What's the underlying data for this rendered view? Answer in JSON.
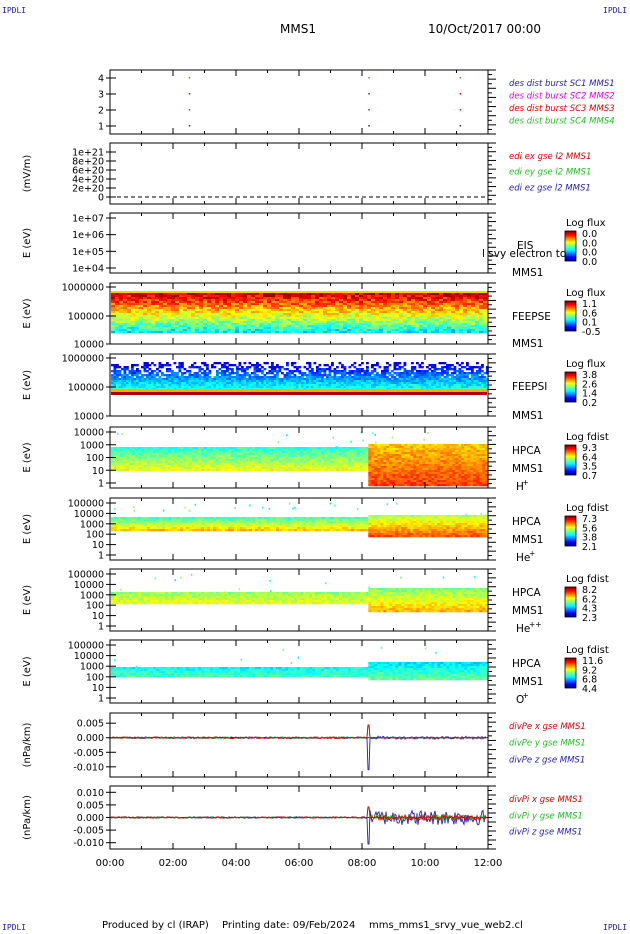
{
  "corner_labels": [
    "IPDLI",
    "IPDLI",
    "IPDLI",
    "IPDLI"
  ],
  "header": {
    "spacecraft": "MMS1",
    "datetime": "10/Oct/2017 00:00"
  },
  "footer": {
    "produced_by": "Produced by cl (IRAP)",
    "printing_date": "Printing date: 09/Feb/2024",
    "filename": "mms_mms1_srvy_vue_web2.cl"
  },
  "colors": {
    "blue": "#1f1fb4",
    "magenta": "#e000e0",
    "red": "#e00000",
    "green": "#20c020",
    "black": "#000000"
  },
  "chart_data": {
    "type": "multi-panel time series",
    "x_axis": {
      "tick_labels": [
        "00:00",
        "02:00",
        "04:00",
        "06:00",
        "08:00",
        "10:00",
        "12:00"
      ],
      "range_hours": [
        0,
        12
      ]
    },
    "panels": [
      {
        "id": "burst",
        "type": "scatter",
        "ylabel": "",
        "tick_labels": [
          "4",
          "3",
          "2",
          "1"
        ],
        "ylim": [
          0.5,
          4.5
        ],
        "series": [
          {
            "name": "des dist burst SC1 MMS1",
            "color": "#1f1fb4",
            "y": 1,
            "times": [
              2.5,
              8.2,
              11.1
            ]
          },
          {
            "name": "des dist burst SC2 MMS2",
            "color": "#e000e0",
            "y": 2,
            "times": [
              2.5,
              8.2,
              11.1
            ]
          },
          {
            "name": "des dist burst SC3 MMS3",
            "color": "#e00000",
            "y": 3,
            "times": [
              2.5,
              8.2,
              11.1
            ]
          },
          {
            "name": "des dist burst SC4 MMS4",
            "color": "#20c020",
            "y": 4,
            "times": [
              2.5,
              8.2,
              11.1
            ]
          }
        ]
      },
      {
        "id": "edi",
        "type": "line",
        "ylabel": "(mV/m)",
        "tick_labels": [
          "1e+21",
          "8e+20",
          "6e+20",
          "4e+20",
          "2e+20",
          "0"
        ],
        "ylim": [
          0,
          1e+21
        ],
        "series": [
          {
            "name": "edi ex gse l2 MMS1",
            "color": "#e00000"
          },
          {
            "name": "edi ey gse l2 MMS1",
            "color": "#20c020"
          },
          {
            "name": "edi ez gse l2 MMS1",
            "color": "#1f1fb4"
          }
        ]
      },
      {
        "id": "eis",
        "type": "heatmap",
        "ylabel": "E (eV)",
        "tick_labels": [
          "1e+07",
          "1e+06",
          "1e+05",
          "1e+04"
        ],
        "instrument": "EIS",
        "spacecraft": "MMS1",
        "note": "l svy electron to",
        "colorbar": {
          "title": "Log flux",
          "ticks": [
            "0.0",
            "0.0",
            "0.0",
            "0.0"
          ]
        }
      },
      {
        "id": "feepse",
        "type": "heatmap",
        "ylabel": "E (eV)",
        "tick_labels": [
          "1000000",
          "100000",
          "10000"
        ],
        "instrument": "FEEPSE",
        "spacecraft": "MMS1",
        "colorbar": {
          "title": "Log flux",
          "ticks": [
            "1.1",
            "0.6",
            "0.1",
            "-0.5"
          ]
        }
      },
      {
        "id": "feepsi",
        "type": "heatmap",
        "ylabel": "E (eV)",
        "tick_labels": [
          "1000000",
          "100000",
          "10000"
        ],
        "instrument": "FEEPSI",
        "spacecraft": "MMS1",
        "colorbar": {
          "title": "Log flux",
          "ticks": [
            "3.8",
            "2.6",
            "1.4",
            "0.2"
          ]
        }
      },
      {
        "id": "hpca_h",
        "type": "heatmap",
        "ylabel": "E (eV)",
        "tick_labels": [
          "10000",
          "1000",
          "100",
          "10",
          "1"
        ],
        "instrument": "HPCA",
        "spacecraft": "MMS1",
        "species": "H",
        "charge": "+",
        "colorbar": {
          "title": "Log fdist",
          "ticks": [
            "9.3",
            "6.4",
            "3.5",
            "0.7"
          ]
        }
      },
      {
        "id": "hpca_he",
        "type": "heatmap",
        "ylabel": "E (eV)",
        "tick_labels": [
          "100000",
          "10000",
          "1000",
          "100",
          "10",
          "1"
        ],
        "instrument": "HPCA",
        "spacecraft": "MMS1",
        "species": "He",
        "charge": "+",
        "colorbar": {
          "title": "Log fdist",
          "ticks": [
            "7.3",
            "5.6",
            "3.8",
            "2.1"
          ]
        }
      },
      {
        "id": "hpca_he2",
        "type": "heatmap",
        "ylabel": "E (eV)",
        "tick_labels": [
          "100000",
          "10000",
          "1000",
          "100",
          "10",
          "1"
        ],
        "instrument": "HPCA",
        "spacecraft": "MMS1",
        "species": "He",
        "charge": "++",
        "colorbar": {
          "title": "Log fdist",
          "ticks": [
            "8.2",
            "6.2",
            "4.3",
            "2.3"
          ]
        }
      },
      {
        "id": "hpca_o",
        "type": "heatmap",
        "ylabel": "E (eV)",
        "tick_labels": [
          "100000",
          "10000",
          "1000",
          "100",
          "10",
          "1"
        ],
        "instrument": "HPCA",
        "spacecraft": "MMS1",
        "species": "O",
        "charge": "+",
        "colorbar": {
          "title": "Log fdist",
          "ticks": [
            "11.6",
            "9.2",
            "6.8",
            "4.4"
          ]
        }
      },
      {
        "id": "divpe",
        "type": "line",
        "ylabel": "(nPa/km)",
        "tick_labels": [
          "0.005",
          "0.000",
          "-0.005",
          "-0.010"
        ],
        "ylim": [
          -0.0135,
          0.0085
        ],
        "series": [
          {
            "name": "divPe x gse MMS1",
            "color": "#e00000"
          },
          {
            "name": "divPe y gse MMS1",
            "color": "#20c020"
          },
          {
            "name": "divPe z gse MMS1",
            "color": "#1f1fb4"
          }
        ]
      },
      {
        "id": "divpi",
        "type": "line",
        "ylabel": "(nPa/km)",
        "tick_labels": [
          "0.010",
          "0.005",
          "0.000",
          "-0.005",
          "-0.010"
        ],
        "ylim": [
          -0.0125,
          0.0125
        ],
        "series": [
          {
            "name": "divPi x gse MMS1",
            "color": "#e00000"
          },
          {
            "name": "divPi y gse MMS1",
            "color": "#20c020"
          },
          {
            "name": "divPi z gse MMS1",
            "color": "#1f1fb4"
          }
        ]
      }
    ]
  }
}
